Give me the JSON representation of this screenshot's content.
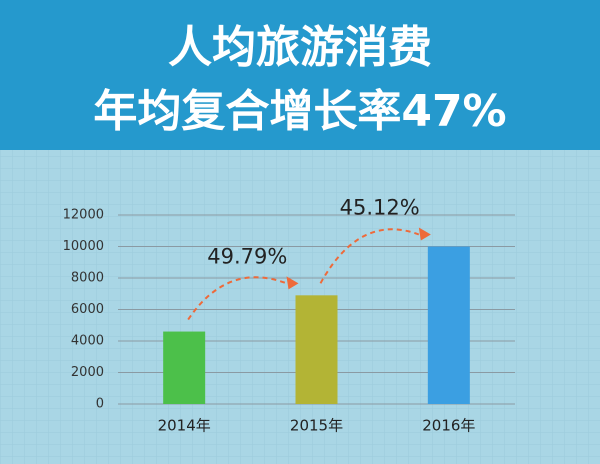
{
  "chart_data": {
    "type": "bar",
    "title": "人均旅游消费",
    "subtitle": "年均复合增长率47%",
    "categories": [
      "2014年",
      "2015年",
      "2016年"
    ],
    "values": [
      4600,
      6900,
      10000
    ],
    "colors": [
      "#4cc04a",
      "#b3b435",
      "#3b9fe2"
    ],
    "ylim": [
      0,
      12000
    ],
    "yticks": [
      0,
      2000,
      4000,
      6000,
      8000,
      10000,
      12000
    ],
    "grid": true,
    "annotations": [
      "49.79%",
      "45.12%"
    ],
    "annotation_color": "#ee6a3a"
  }
}
